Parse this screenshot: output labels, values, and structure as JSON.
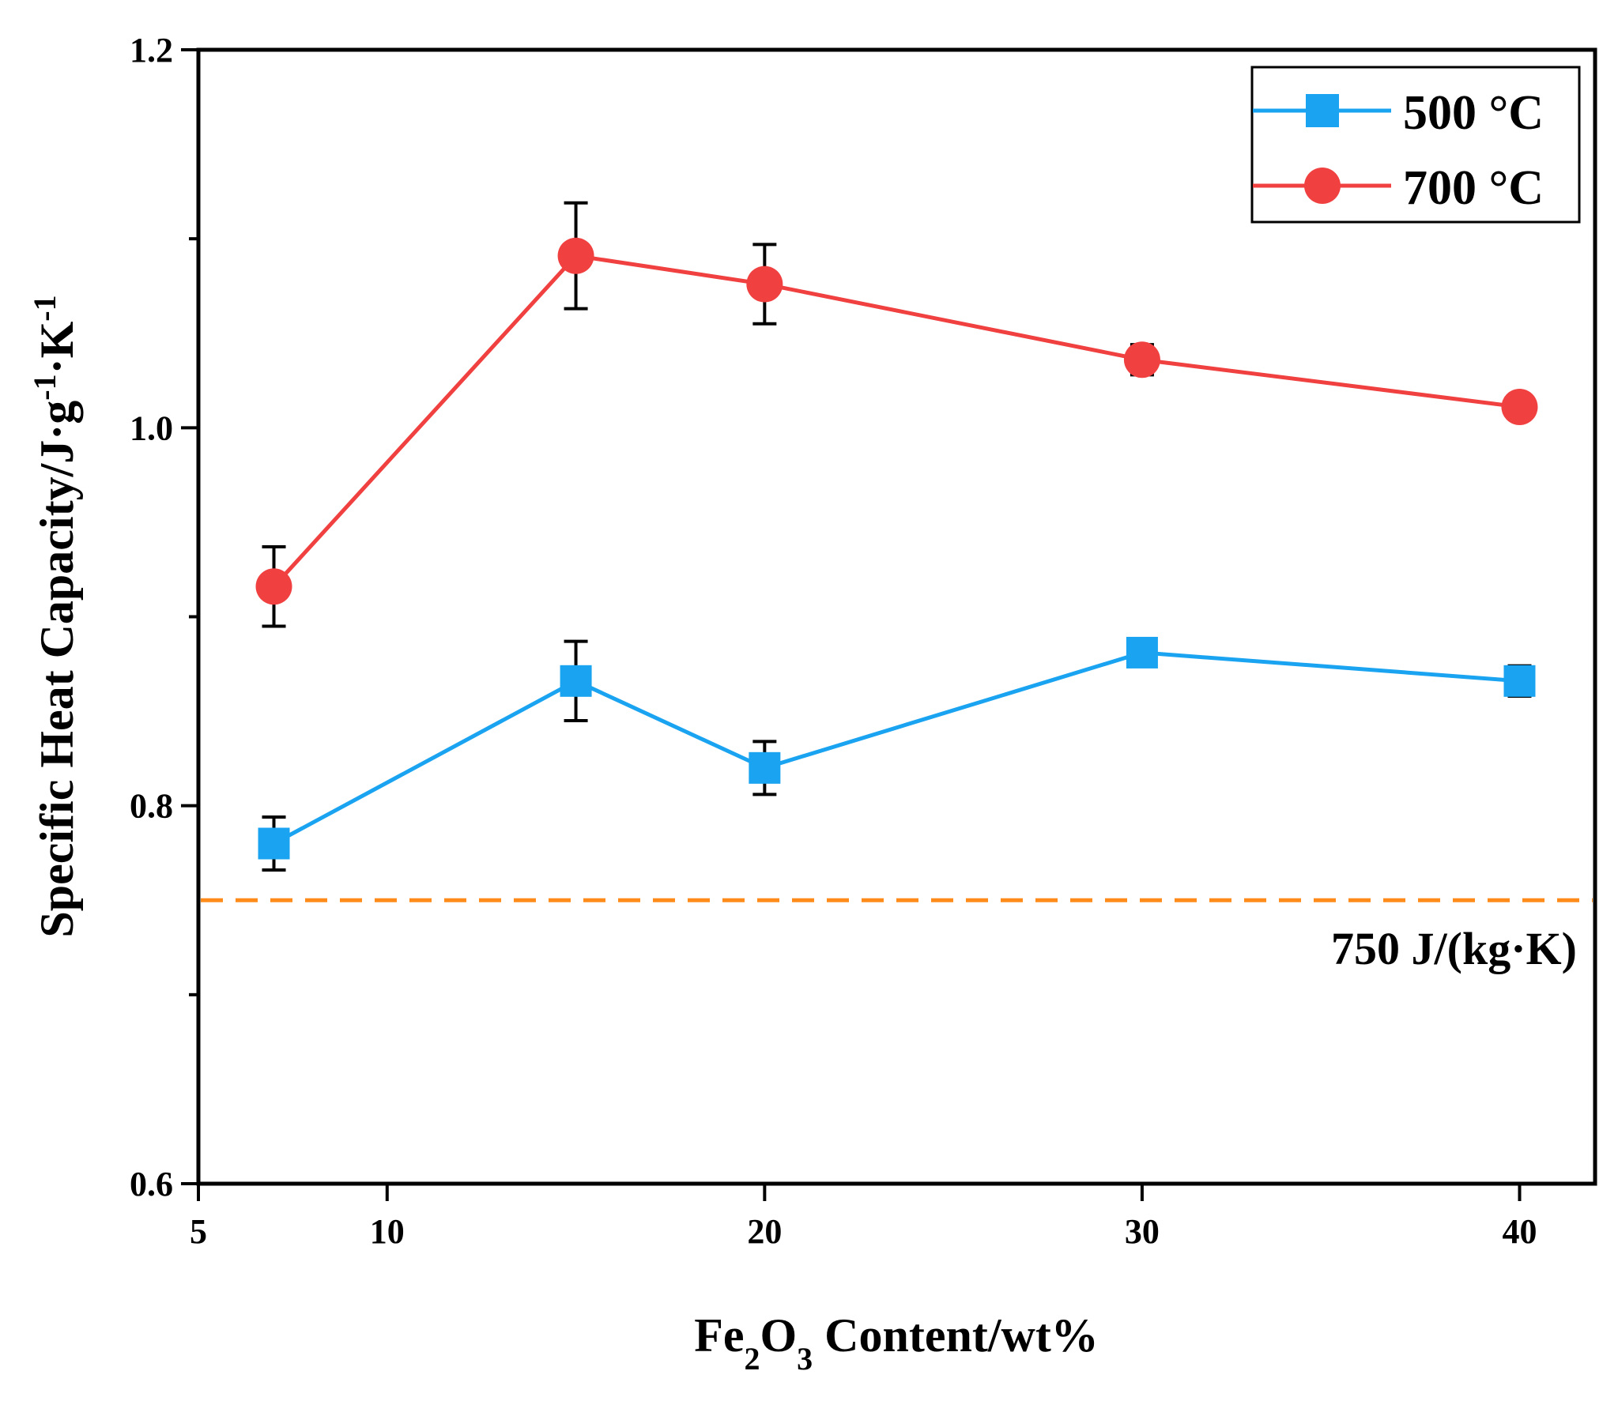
{
  "chart_data": {
    "type": "line",
    "xlabel": {
      "base": "Fe",
      "sub1": "2",
      "mid": "O",
      "sub2": "3",
      "rest": " Content/wt%"
    },
    "ylabel": {
      "base": "Specific Heat Capacity/J·g",
      "sup1": "-1",
      "mid": "·K",
      "sup2": "-1"
    },
    "xlim": [
      5,
      42
    ],
    "ylim": [
      0.6,
      1.2
    ],
    "x_ticks": [
      5,
      10,
      20,
      30,
      40
    ],
    "x_tick_labels": [
      "5",
      "10",
      "20",
      "30",
      "40"
    ],
    "y_ticks": [
      0.6,
      0.8,
      1.0,
      1.2
    ],
    "y_tick_labels": [
      "0.6",
      "0.8",
      "1.0",
      "1.2"
    ],
    "y_minor_ticks": [
      0.7,
      0.9,
      1.1
    ],
    "grid": false,
    "legend_position": "top-right",
    "series": [
      {
        "name": "500 °C",
        "color": "#1aa3f0",
        "marker": "square",
        "x": [
          7,
          15,
          20,
          30,
          40
        ],
        "y": [
          0.78,
          0.866,
          0.82,
          0.881,
          0.866
        ],
        "err": [
          0.014,
          0.021,
          0.014,
          0.002,
          0.008
        ]
      },
      {
        "name": "700 °C",
        "color": "#f04040",
        "marker": "circle",
        "x": [
          7,
          15,
          20,
          30,
          40
        ],
        "y": [
          0.916,
          1.091,
          1.076,
          1.036,
          1.011
        ],
        "err": [
          0.021,
          0.028,
          0.021,
          0.008,
          0.002
        ]
      }
    ],
    "reference_line": {
      "y": 0.75,
      "label": "750 J/(kg·K)",
      "color": "#ff8c1a",
      "style": "dashed"
    }
  }
}
